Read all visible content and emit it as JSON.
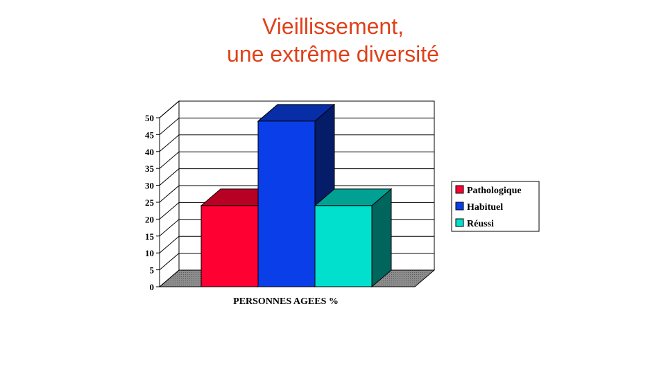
{
  "slide": {
    "title_line1": "Vieillissement,",
    "title_line2": "une extrême diversité"
  },
  "chart_data": {
    "type": "bar",
    "title": "",
    "xlabel": "PERSONNES AGEES %",
    "ylabel": "",
    "ylim": [
      0,
      50
    ],
    "y_ticks": [
      0,
      5,
      10,
      15,
      20,
      25,
      30,
      35,
      40,
      45,
      50
    ],
    "categories": [
      "PERSONNES AGEES %"
    ],
    "grid": true,
    "three_d": true,
    "legend_position": "right",
    "series": [
      {
        "name": "Pathologique",
        "values": [
          24
        ],
        "color": "#ff0033"
      },
      {
        "name": "Habituel",
        "values": [
          49
        ],
        "color": "#0a3ee8"
      },
      {
        "name": "Réussi",
        "values": [
          24
        ],
        "color": "#00e0cc"
      }
    ]
  }
}
